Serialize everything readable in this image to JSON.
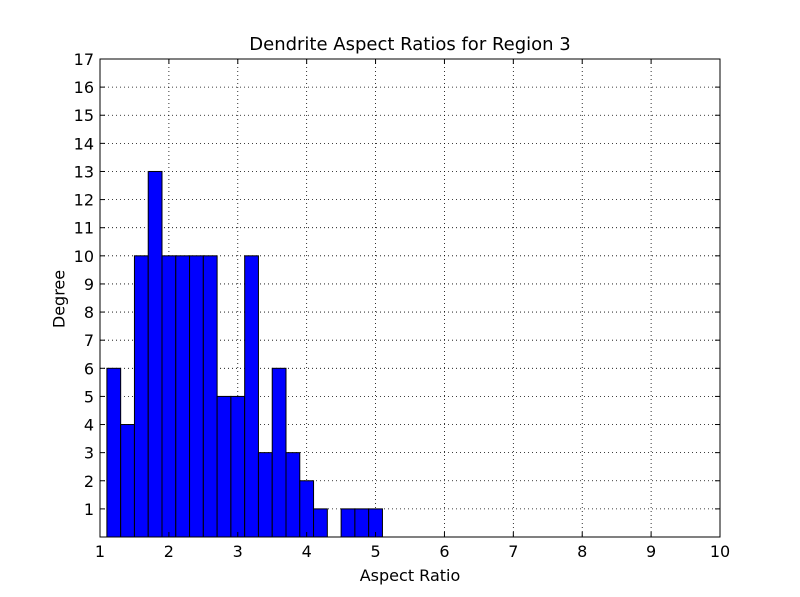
{
  "chart_data": {
    "type": "bar",
    "title": "Dendrite Aspect Ratios for Region 3",
    "xlabel": "Aspect Ratio",
    "ylabel": "Degree",
    "xlim": [
      1,
      10
    ],
    "ylim": [
      0,
      17
    ],
    "xticks": [
      "1",
      "2",
      "3",
      "4",
      "5",
      "6",
      "7",
      "8",
      "9",
      "10"
    ],
    "yticks": [
      "1",
      "2",
      "3",
      "4",
      "5",
      "6",
      "7",
      "8",
      "9",
      "10",
      "11",
      "12",
      "13",
      "14",
      "15",
      "16",
      "17"
    ],
    "grid": true,
    "bar_color": "#0000ff",
    "bins": [
      {
        "start": 1.1,
        "end": 1.3,
        "value": 6
      },
      {
        "start": 1.3,
        "end": 1.5,
        "value": 4
      },
      {
        "start": 1.5,
        "end": 1.7,
        "value": 10
      },
      {
        "start": 1.7,
        "end": 1.9,
        "value": 13
      },
      {
        "start": 1.9,
        "end": 2.1,
        "value": 10
      },
      {
        "start": 2.1,
        "end": 2.3,
        "value": 10
      },
      {
        "start": 2.3,
        "end": 2.5,
        "value": 10
      },
      {
        "start": 2.5,
        "end": 2.7,
        "value": 10
      },
      {
        "start": 2.7,
        "end": 2.9,
        "value": 5
      },
      {
        "start": 2.9,
        "end": 3.1,
        "value": 5
      },
      {
        "start": 3.1,
        "end": 3.3,
        "value": 10
      },
      {
        "start": 3.3,
        "end": 3.5,
        "value": 3
      },
      {
        "start": 3.5,
        "end": 3.7,
        "value": 6
      },
      {
        "start": 3.7,
        "end": 3.9,
        "value": 3
      },
      {
        "start": 3.9,
        "end": 4.1,
        "value": 2
      },
      {
        "start": 4.1,
        "end": 4.3,
        "value": 1
      },
      {
        "start": 4.3,
        "end": 4.5,
        "value": 0
      },
      {
        "start": 4.5,
        "end": 4.7,
        "value": 1
      },
      {
        "start": 4.7,
        "end": 4.9,
        "value": 1
      },
      {
        "start": 4.9,
        "end": 5.1,
        "value": 1
      }
    ]
  }
}
